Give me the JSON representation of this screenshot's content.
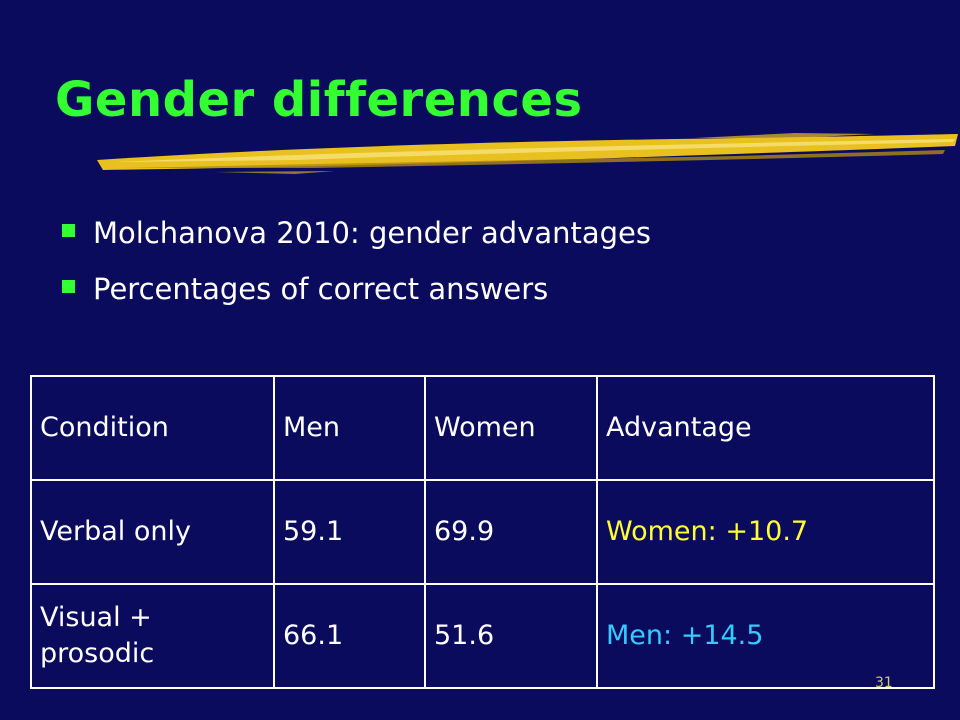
{
  "slide": {
    "title": "Gender differences",
    "bullets": [
      "Molchanova 2010: gender advantages",
      "Percentages of correct answers"
    ],
    "table": {
      "headers": [
        "Condition",
        "Men",
        "Women",
        "Advantage"
      ],
      "rows": [
        {
          "condition": "Verbal only",
          "men": "59.1",
          "women": "69.9",
          "advantage": "Women: +10.7"
        },
        {
          "condition": "Visual + prosodic",
          "men": "66.1",
          "women": "51.6",
          "advantage": "Men: +14.5"
        }
      ]
    },
    "page_number": "31"
  },
  "colors": {
    "background": "#0b0b5e",
    "title": "#33ff33",
    "bullet_marker": "#33ff33",
    "brush_stroke": "#e8c020",
    "women_advantage": "#ffff33",
    "men_advantage": "#33ccff"
  },
  "icons": {
    "bullet": "square-bullet-icon",
    "decoration": "brush-stroke-underline"
  }
}
